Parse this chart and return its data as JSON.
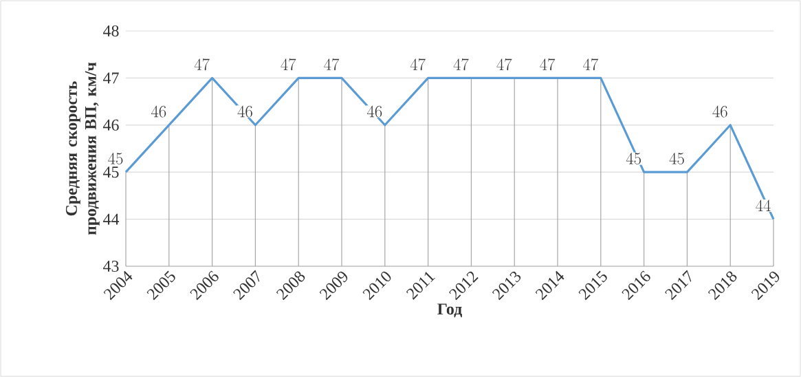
{
  "chart_data": {
    "type": "line",
    "xlabel": "Год",
    "ylabel": "Средняя скорость продвижения ВП, км/ч",
    "categories": [
      "2004",
      "2005",
      "2006",
      "2007",
      "2008",
      "2009",
      "2010",
      "2011",
      "2012",
      "2013",
      "2014",
      "2015",
      "2016",
      "2017",
      "2018",
      "2019"
    ],
    "series": [
      {
        "color": "#5b9bd5",
        "values": [
          45,
          46,
          47,
          46,
          47,
          47,
          46,
          47,
          47,
          47,
          47,
          47,
          45,
          45,
          46,
          44
        ]
      }
    ],
    "ylim": [
      43,
      48
    ],
    "yticks": [
      43,
      44,
      45,
      46,
      47,
      48
    ],
    "grid": true,
    "data_labels": true,
    "marker": "none",
    "line_style": "solid",
    "legend": false
  }
}
